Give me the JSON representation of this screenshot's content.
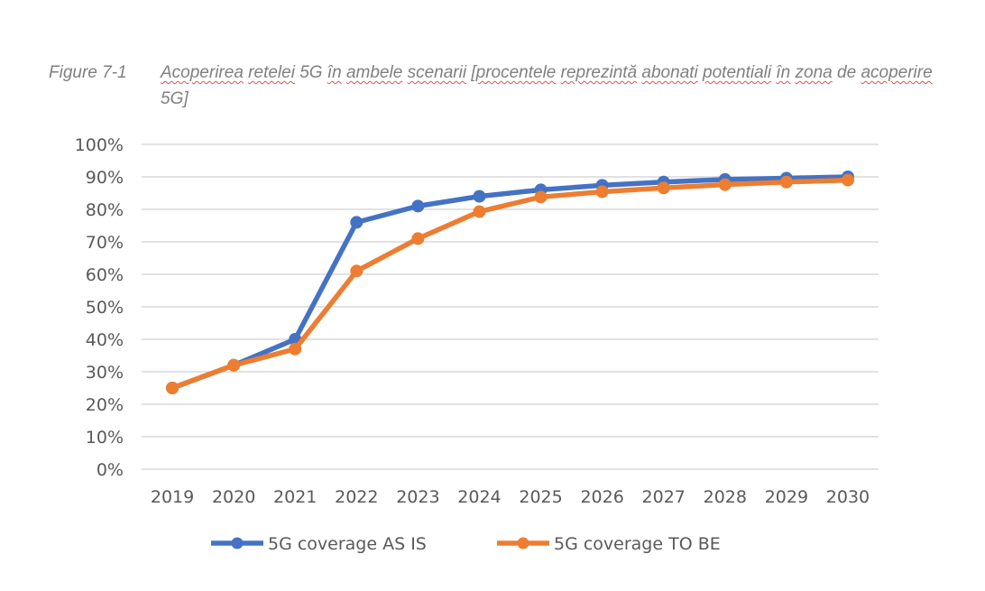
{
  "caption": {
    "label": "Figure 7-1",
    "text_parts": [
      {
        "t": "Acoperirea",
        "spell": true
      },
      {
        "t": " ",
        "spell": false
      },
      {
        "t": "retelei",
        "spell": true
      },
      {
        "t": " 5G ",
        "spell": false
      },
      {
        "t": "în",
        "spell": true
      },
      {
        "t": " ",
        "spell": false
      },
      {
        "t": "ambele",
        "spell": true
      },
      {
        "t": " ",
        "spell": false
      },
      {
        "t": "scenarii",
        "spell": true
      },
      {
        "t": " ",
        "spell": false
      },
      {
        "t": "[procentele",
        "spell": true
      },
      {
        "t": " ",
        "spell": false
      },
      {
        "t": "reprezintă",
        "spell": true
      },
      {
        "t": " ",
        "spell": false
      },
      {
        "t": "abonati",
        "spell": true
      },
      {
        "t": " ",
        "spell": false
      },
      {
        "t": "potentiali",
        "spell": true
      },
      {
        "t": " ",
        "spell": false
      },
      {
        "t": "în",
        "spell": true
      },
      {
        "t": " ",
        "spell": false
      },
      {
        "t": "zona",
        "spell": true
      },
      {
        "t": " de ",
        "spell": false
      },
      {
        "t": "acoperire",
        "spell": true
      },
      {
        "t": " 5G]",
        "spell": false
      }
    ]
  },
  "chart_data": {
    "type": "line",
    "title": "",
    "xlabel": "",
    "ylabel": "",
    "categories": [
      "2019",
      "2020",
      "2021",
      "2022",
      "2023",
      "2024",
      "2025",
      "2026",
      "2027",
      "2028",
      "2029",
      "2030"
    ],
    "ylim": [
      0,
      100
    ],
    "yticks": [
      "0%",
      "10%",
      "20%",
      "30%",
      "40%",
      "50%",
      "60%",
      "70%",
      "80%",
      "90%",
      "100%"
    ],
    "grid": true,
    "legend_position": "bottom",
    "series": [
      {
        "name": "5G coverage AS IS",
        "color": "#4472c4",
        "values": [
          25,
          32,
          40,
          76,
          81,
          84,
          86,
          87.4,
          88.4,
          89.2,
          89.6,
          90
        ]
      },
      {
        "name": "5G coverage TO BE",
        "color": "#ed7d31",
        "values": [
          25,
          32,
          37,
          61,
          71,
          79.3,
          83.8,
          85.4,
          86.6,
          87.6,
          88.4,
          89
        ]
      }
    ]
  }
}
